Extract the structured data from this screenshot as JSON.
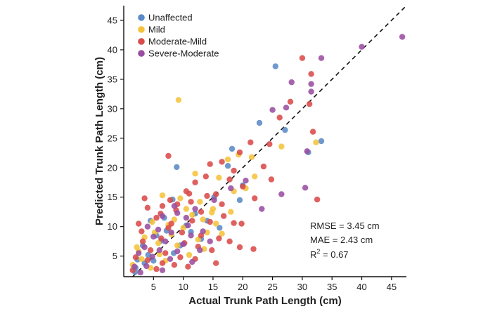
{
  "chart_data": {
    "type": "scatter",
    "xlabel": "Actual Trunk Path Length (cm)",
    "ylabel": "Predicted Trunk Path Length (cm)",
    "xlim": [
      0,
      47.5
    ],
    "ylim": [
      1.5,
      47.5
    ],
    "xticks": [
      5,
      10,
      15,
      20,
      25,
      30,
      35,
      40,
      45
    ],
    "yticks": [
      5,
      10,
      15,
      20,
      25,
      30,
      35,
      40,
      45
    ],
    "grid": false,
    "legend_position": "top-left",
    "reference_line": "identity (y = x), dashed",
    "stats": {
      "rmse": "RMSE = 3.45 cm",
      "mae": "MAE = 2.43 cm",
      "r2_prefix": "R",
      "r2_sup": "2",
      "r2_suffix": " = 0.67"
    },
    "series": [
      {
        "name": "Unaffected",
        "color": "#5b8ac6",
        "points": [
          [
            25.5,
            37.2
          ],
          [
            22.8,
            27.6
          ],
          [
            27.1,
            26.4
          ],
          [
            33.2,
            24.5
          ],
          [
            18.2,
            23.2
          ],
          [
            31.0,
            22.6
          ],
          [
            17.5,
            20.3
          ],
          [
            8.9,
            20.1
          ],
          [
            20.0,
            17.0
          ],
          [
            15.2,
            15.0
          ],
          [
            8.2,
            14.6
          ],
          [
            12.0,
            12.2
          ],
          [
            14.0,
            11.0
          ],
          [
            10.5,
            10.2
          ],
          [
            7.2,
            9.3
          ],
          [
            5.5,
            8.5
          ],
          [
            6.3,
            7.6
          ],
          [
            3.2,
            6.8
          ],
          [
            4.1,
            5.2
          ],
          [
            2.3,
            4.4
          ],
          [
            9.5,
            6.8
          ],
          [
            11.3,
            9.1
          ],
          [
            3.5,
            3.8
          ],
          [
            2.0,
            3.0
          ],
          [
            16.1,
            9.8
          ],
          [
            13.0,
            7.9
          ],
          [
            6.8,
            11.5
          ],
          [
            5.0,
            4.2
          ],
          [
            8.4,
            5.5
          ],
          [
            1.9,
            2.3
          ],
          [
            19.5,
            14.5
          ],
          [
            4.5,
            11.0
          ]
        ]
      },
      {
        "name": "Mild",
        "color": "#f5c33b",
        "points": [
          [
            9.2,
            31.5
          ],
          [
            32.3,
            24.3
          ],
          [
            26.5,
            23.6
          ],
          [
            19.3,
            22.2
          ],
          [
            21.5,
            21.8
          ],
          [
            17.5,
            21.4
          ],
          [
            12.0,
            19.0
          ],
          [
            16.0,
            18.3
          ],
          [
            22.0,
            18.5
          ],
          [
            6.5,
            15.3
          ],
          [
            9.5,
            14.8
          ],
          [
            15.0,
            13.0
          ],
          [
            18.0,
            12.5
          ],
          [
            11.5,
            12.0
          ],
          [
            13.3,
            11.2
          ],
          [
            4.8,
            10.8
          ],
          [
            7.5,
            10.3
          ],
          [
            10.0,
            9.8
          ],
          [
            14.0,
            9.0
          ],
          [
            16.5,
            8.8
          ],
          [
            3.5,
            8.2
          ],
          [
            8.0,
            8.7
          ],
          [
            12.5,
            7.8
          ],
          [
            5.8,
            7.2
          ],
          [
            9.0,
            6.8
          ],
          [
            2.5,
            5.8
          ],
          [
            6.0,
            5.3
          ],
          [
            11.0,
            5.2
          ],
          [
            3.0,
            4.5
          ],
          [
            7.0,
            4.2
          ],
          [
            1.5,
            3.5
          ],
          [
            4.5,
            3.0
          ],
          [
            13.5,
            6.2
          ],
          [
            15.5,
            10.5
          ],
          [
            10.5,
            13.0
          ],
          [
            8.5,
            11.2
          ],
          [
            18.5,
            16.0
          ],
          [
            20.5,
            16.5
          ],
          [
            2.2,
            6.5
          ],
          [
            5.2,
            9.0
          ],
          [
            12.8,
            14.2
          ],
          [
            14.8,
            12.4
          ]
        ]
      },
      {
        "name": "Moderate-Mild",
        "color": "#d94b4a",
        "points": [
          [
            30.0,
            38.6
          ],
          [
            31.5,
            35.9
          ],
          [
            28.0,
            31.2
          ],
          [
            31.2,
            30.8
          ],
          [
            26.2,
            28.5
          ],
          [
            31.8,
            26.1
          ],
          [
            32.5,
            14.6
          ],
          [
            24.5,
            24.0
          ],
          [
            23.5,
            20.2
          ],
          [
            21.3,
            24.3
          ],
          [
            19.5,
            22.6
          ],
          [
            7.5,
            22.0
          ],
          [
            18.5,
            19.5
          ],
          [
            16.5,
            21.0
          ],
          [
            14.5,
            20.6
          ],
          [
            13.8,
            18.5
          ],
          [
            12.0,
            17.5
          ],
          [
            10.5,
            16.0
          ],
          [
            17.8,
            18.0
          ],
          [
            24.8,
            18.0
          ],
          [
            20.0,
            16.8
          ],
          [
            15.5,
            15.5
          ],
          [
            11.3,
            14.2
          ],
          [
            9.0,
            13.8
          ],
          [
            6.5,
            13.5
          ],
          [
            4.0,
            13.2
          ],
          [
            3.5,
            14.8
          ],
          [
            13.0,
            12.5
          ],
          [
            16.8,
            11.8
          ],
          [
            18.5,
            10.6
          ],
          [
            19.8,
            10.5
          ],
          [
            14.5,
            10.8
          ],
          [
            11.5,
            11.0
          ],
          [
            8.0,
            10.5
          ],
          [
            5.5,
            11.5
          ],
          [
            2.5,
            10.5
          ],
          [
            7.5,
            9.8
          ],
          [
            9.8,
            9.0
          ],
          [
            13.0,
            8.5
          ],
          [
            16.0,
            8.0
          ],
          [
            17.8,
            7.5
          ],
          [
            19.5,
            6.5
          ],
          [
            12.5,
            6.6
          ],
          [
            6.3,
            8.0
          ],
          [
            3.2,
            7.5
          ],
          [
            4.5,
            6.0
          ],
          [
            7.0,
            5.5
          ],
          [
            9.5,
            4.8
          ],
          [
            12.0,
            4.5
          ],
          [
            2.0,
            4.8
          ],
          [
            4.0,
            4.3
          ],
          [
            6.5,
            3.8
          ],
          [
            15.5,
            3.8
          ],
          [
            10.8,
            3.2
          ],
          [
            8.5,
            3.5
          ],
          [
            1.5,
            2.6
          ],
          [
            5.5,
            2.8
          ],
          [
            11.0,
            15.6
          ],
          [
            22.0,
            14.8
          ],
          [
            14.0,
            15.2
          ],
          [
            8.8,
            12.8
          ],
          [
            10.2,
            7.2
          ],
          [
            14.8,
            6.0
          ],
          [
            16.5,
            13.8
          ],
          [
            21.8,
            6.2
          ],
          [
            3.0,
            9.2
          ],
          [
            6.2,
            12.2
          ],
          [
            7.8,
            14.5
          ]
        ]
      },
      {
        "name": "Severe-Moderate",
        "color": "#9a4ea2",
        "points": [
          [
            46.8,
            42.2
          ],
          [
            40.0,
            40.5
          ],
          [
            33.2,
            38.6
          ],
          [
            28.2,
            34.5
          ],
          [
            31.5,
            34.2
          ],
          [
            31.5,
            32.9
          ],
          [
            25.0,
            29.8
          ],
          [
            27.3,
            30.2
          ],
          [
            30.8,
            22.8
          ],
          [
            20.5,
            17.8
          ],
          [
            26.5,
            15.5
          ],
          [
            30.5,
            16.6
          ],
          [
            23.2,
            13.0
          ],
          [
            18.0,
            16.5
          ],
          [
            15.2,
            14.5
          ],
          [
            12.0,
            13.0
          ],
          [
            10.5,
            11.5
          ],
          [
            9.0,
            12.3
          ],
          [
            6.5,
            11.8
          ],
          [
            8.0,
            9.0
          ],
          [
            11.3,
            8.5
          ],
          [
            13.3,
            9.2
          ],
          [
            5.0,
            8.3
          ],
          [
            4.0,
            10.0
          ],
          [
            7.0,
            7.5
          ],
          [
            10.0,
            7.0
          ],
          [
            12.8,
            6.0
          ],
          [
            3.5,
            6.5
          ],
          [
            6.0,
            6.0
          ],
          [
            9.0,
            5.8
          ],
          [
            2.5,
            5.5
          ],
          [
            4.8,
            4.9
          ],
          [
            7.8,
            4.5
          ],
          [
            11.5,
            4.0
          ],
          [
            1.8,
            3.2
          ],
          [
            3.8,
            3.3
          ],
          [
            6.5,
            2.6
          ],
          [
            2.8,
            2.2
          ],
          [
            14.5,
            7.5
          ],
          [
            8.5,
            13.5
          ],
          [
            5.8,
            9.5
          ],
          [
            10.8,
            10.2
          ]
        ]
      }
    ]
  }
}
